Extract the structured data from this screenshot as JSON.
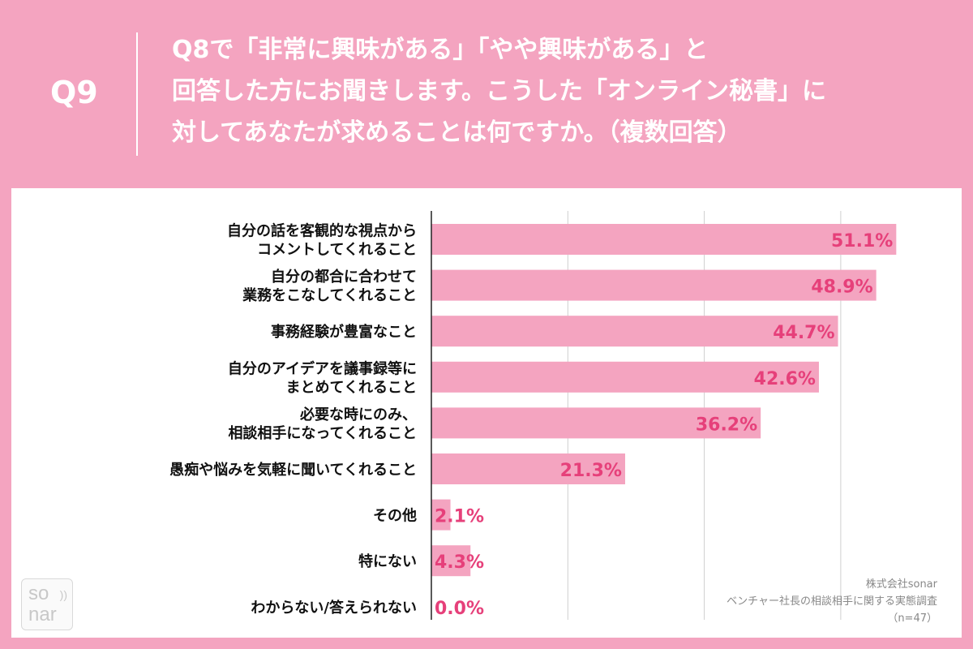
{
  "header": {
    "qnum": "Q9",
    "question_lines": [
      "Q8で「非常に興味がある」「やや興味がある」と",
      "回答した方にお聞きします。こうした「オンライン秘書」に",
      "対してあなたが求めることは何ですか。（複数回答）"
    ]
  },
  "chart_data": {
    "type": "bar",
    "orientation": "horizontal",
    "categories": [
      "自分の話を客観的な視点から\nコメントしてくれること",
      "自分の都合に合わせて\n業務をこなしてくれること",
      "事務経験が豊富なこと",
      "自分のアイデアを議事録等に\nまとめてくれること",
      "必要な時にのみ、\n相談相手になってくれること",
      "愚痴や悩みを気軽に聞いてくれること",
      "その他",
      "特にない",
      "わからない/答えられない"
    ],
    "values": [
      51.1,
      48.9,
      44.7,
      42.6,
      36.2,
      21.3,
      2.1,
      4.3,
      0.0
    ],
    "data_labels": [
      "51.1%",
      "48.9%",
      "44.7%",
      "42.6%",
      "36.2%",
      "21.3%",
      "2.1%",
      "4.3%",
      "0.0%"
    ],
    "xlim": [
      0,
      60
    ],
    "grid": true,
    "bar_color": "#f4a4c0",
    "label_color": "#e6407a",
    "title": "",
    "xlabel": "",
    "ylabel": ""
  },
  "logo": {
    "top": "so",
    "bottom": "nar",
    "mark": "))"
  },
  "source": {
    "company": "株式会社sonar",
    "survey": "ベンチャー社長の相談相手に関する実態調査",
    "sample": "（n=47）"
  }
}
